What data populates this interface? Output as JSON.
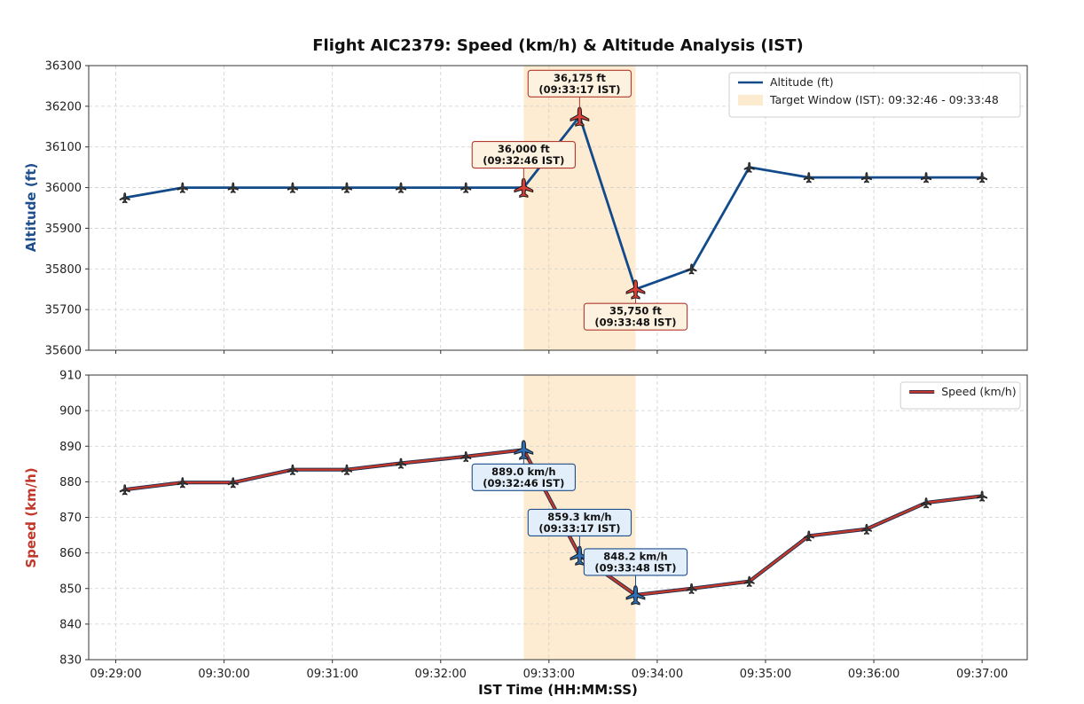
{
  "chart_data": {
    "title": "Flight AIC2379: Speed (km/h) & Altitude Analysis (IST)",
    "xlabel": "IST Time (HH:MM:SS)",
    "x_ticks": [
      "09:29:00",
      "09:30:00",
      "09:31:00",
      "09:32:00",
      "09:33:00",
      "09:34:00",
      "09:35:00",
      "09:36:00",
      "09:37:00"
    ],
    "x_range": [
      "09:28:45",
      "09:37:25"
    ],
    "grid": true,
    "highlight_window": {
      "label": "Target Window (IST): 09:32:46 - 09:33:48",
      "start": "09:32:46",
      "end": "09:33:48",
      "color": "#fdebd0"
    },
    "panels": [
      {
        "name": "altitude",
        "type": "line",
        "ylabel": "Altitude (ft)",
        "ylabel_color": "#1f4e8c",
        "ylim": [
          35600,
          36300
        ],
        "y_ticks": [
          "35600",
          "35700",
          "35800",
          "35900",
          "36000",
          "36100",
          "36200",
          "36300"
        ],
        "legend_position": "top-right",
        "series": [
          {
            "name": "Altitude (ft)",
            "color": "#124a8a",
            "x": [
              "09:29:05",
              "09:29:37",
              "09:30:05",
              "09:30:38",
              "09:31:08",
              "09:31:38",
              "09:32:14",
              "09:32:46",
              "09:33:17",
              "09:33:48",
              "09:34:19",
              "09:34:51",
              "09:35:24",
              "09:35:56",
              "09:36:29",
              "09:37:00"
            ],
            "values": [
              35975,
              36000,
              36000,
              36000,
              36000,
              36000,
              36000,
              36000,
              36175,
              35750,
              35800,
              36050,
              36025,
              36025,
              36025,
              36025
            ]
          }
        ],
        "annotations": [
          {
            "x": "09:32:46",
            "y": 36000,
            "line1": "36,000 ft",
            "line2": "(09:32:46 IST)",
            "position": "above"
          },
          {
            "x": "09:33:17",
            "y": 36175,
            "line1": "36,175 ft",
            "line2": "(09:33:17 IST)",
            "position": "above"
          },
          {
            "x": "09:33:48",
            "y": 35750,
            "line1": "35,750 ft",
            "line2": "(09:33:48 IST)",
            "position": "below"
          }
        ]
      },
      {
        "name": "speed",
        "type": "line",
        "ylabel": "Speed (km/h)",
        "ylabel_color": "#c0392b",
        "ylim": [
          830,
          910
        ],
        "y_ticks": [
          "830",
          "840",
          "850",
          "860",
          "870",
          "880",
          "890",
          "900",
          "910"
        ],
        "legend_position": "top-right",
        "series": [
          {
            "name": "Speed (km/h)",
            "color": "#c0392b",
            "x": [
              "09:29:05",
              "09:29:37",
              "09:30:05",
              "09:30:38",
              "09:31:08",
              "09:31:38",
              "09:32:14",
              "09:32:46",
              "09:33:17",
              "09:33:48",
              "09:34:19",
              "09:34:51",
              "09:35:24",
              "09:35:56",
              "09:36:29",
              "09:37:00"
            ],
            "values": [
              877.8,
              879.8,
              879.8,
              883.4,
              883.4,
              885.2,
              887.1,
              889.0,
              859.3,
              848.2,
              850.0,
              852.0,
              864.8,
              866.7,
              874.1,
              876.0
            ]
          }
        ],
        "annotations": [
          {
            "x": "09:32:46",
            "y": 889.0,
            "line1": "889.0 km/h",
            "line2": "(09:32:46 IST)",
            "position": "below"
          },
          {
            "x": "09:33:17",
            "y": 859.3,
            "line1": "859.3 km/h",
            "line2": "(09:33:17 IST)",
            "position": "above"
          },
          {
            "x": "09:33:48",
            "y": 848.2,
            "line1": "848.2 km/h",
            "line2": "(09:33:48 IST)",
            "position": "above"
          }
        ]
      }
    ]
  }
}
